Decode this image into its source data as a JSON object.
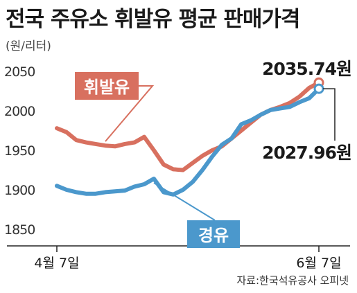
{
  "title": "전국 주유소 휘발유 평균 판매가격",
  "unit": "(원/리터)",
  "source": "자료:한국석유공사 오피넷",
  "colors": {
    "gasoline": "#d8705f",
    "diesel": "#4b98cc",
    "axis": "#222222",
    "text": "#1a1a1a"
  },
  "chart_data": {
    "type": "line",
    "title": "전국 주유소 휘발유 평균 판매가격",
    "ylabel": "(원/리터)",
    "ylim": [
      1850,
      2050
    ],
    "yticks": [
      "1850",
      "1900",
      "1950",
      "2000",
      "2050"
    ],
    "x_tick_labels": [
      "4월 7일",
      "6월 7일"
    ],
    "grid": false,
    "series": [
      {
        "name": "휘발유",
        "end_label": "2035.74원",
        "values": [
          1978,
          1973,
          1963,
          1960,
          1958,
          1956,
          1955,
          1958,
          1960,
          1967,
          1950,
          1932,
          1926,
          1925,
          1934,
          1943,
          1950,
          1955,
          1965,
          1975,
          1985,
          1995,
          2001,
          2005,
          2010,
          2018,
          2029,
          2035.74
        ]
      },
      {
        "name": "경유",
        "end_label": "2027.96원",
        "values": [
          1905,
          1900,
          1897,
          1895,
          1895,
          1897,
          1898,
          1899,
          1904,
          1907,
          1914,
          1897,
          1894,
          1900,
          1910,
          1925,
          1942,
          1957,
          1965,
          1983,
          1988,
          1995,
          2001,
          2003,
          2005,
          2011,
          2016,
          2027.96
        ]
      }
    ]
  }
}
